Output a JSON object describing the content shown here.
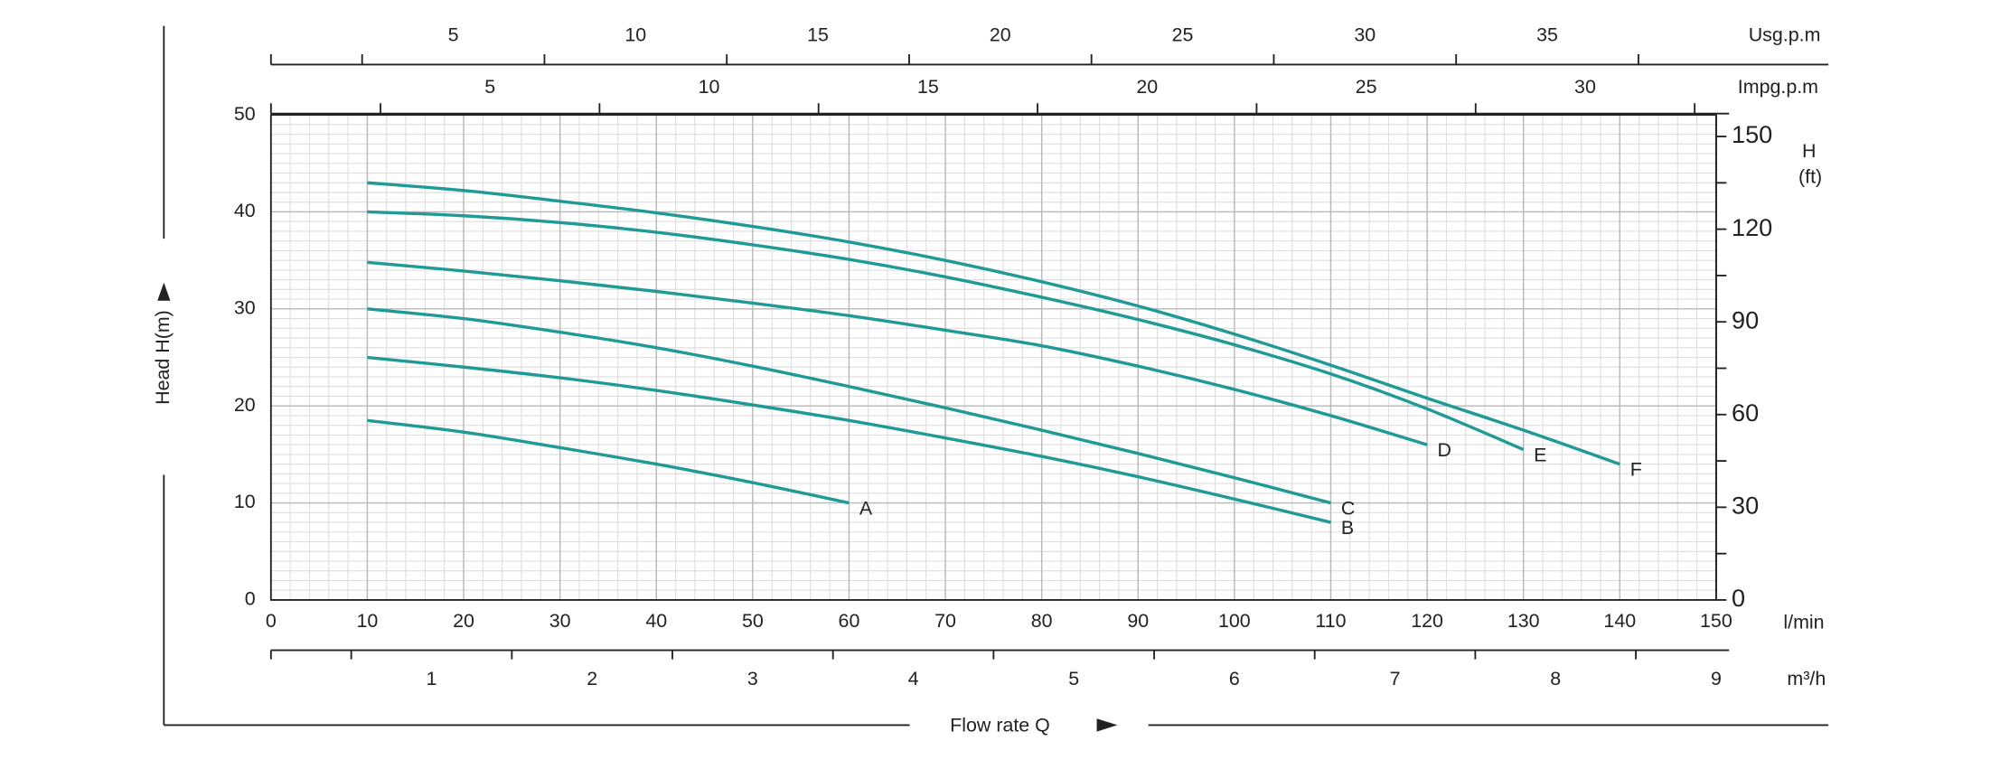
{
  "chart_data": {
    "type": "line",
    "xlabel": "Flow rate Q",
    "ylabel": "Head H(m)",
    "xunit": "l/min",
    "xlim": [
      0,
      150
    ],
    "xticks": [
      0,
      10,
      20,
      30,
      40,
      50,
      60,
      70,
      80,
      90,
      100,
      110,
      120,
      130,
      140,
      150
    ],
    "ylim": [
      0,
      50
    ],
    "yticks": [
      0,
      10,
      20,
      30,
      40,
      50
    ],
    "grid": true,
    "minor_grid_step": {
      "x": 2,
      "y": 1
    },
    "y2label": [
      "H",
      "(ft)"
    ],
    "y2lim": [
      0,
      157
    ],
    "y2ticks": [
      0,
      30,
      60,
      90,
      120,
      150
    ],
    "y2_minor_ticks": [
      15,
      45,
      75,
      105,
      135
    ],
    "top_axes": [
      {
        "label": "Usg.p.m",
        "lim": [
          0,
          39.63
        ],
        "ticks": [
          5,
          10,
          15,
          20,
          25,
          30,
          35
        ],
        "minor_ticks": [
          0,
          2.5,
          7.5,
          12.5,
          17.5,
          22.5,
          27.5,
          32.5,
          37.5
        ]
      },
      {
        "label": "Impg.p.m",
        "lim": [
          0,
          32.99
        ],
        "ticks": [
          5,
          10,
          15,
          20,
          25,
          30
        ],
        "minor_ticks": [
          0,
          2.5,
          7.5,
          12.5,
          17.5,
          22.5,
          27.5,
          32.5
        ]
      }
    ],
    "bottom_axis2": {
      "label": "m³/h",
      "lim": [
        0,
        9
      ],
      "ticks": [
        1,
        2,
        3,
        4,
        5,
        6,
        7,
        8,
        9
      ],
      "minor_ticks": [
        0,
        0.5,
        1.5,
        2.5,
        3.5,
        4.5,
        5.5,
        6.5,
        7.5,
        8.5
      ]
    },
    "color": "#1f9a96",
    "series": [
      {
        "name": "A",
        "x": [
          10,
          20,
          30,
          40,
          50,
          60
        ],
        "values": [
          18.5,
          17.3,
          15.7,
          14.0,
          12.1,
          10
        ]
      },
      {
        "name": "B",
        "x": [
          10,
          20,
          30,
          40,
          50,
          60,
          70,
          80,
          90,
          100,
          110
        ],
        "values": [
          25,
          24,
          22.9,
          21.6,
          20.1,
          18.5,
          16.7,
          14.8,
          12.7,
          10.4,
          8
        ]
      },
      {
        "name": "C",
        "x": [
          10,
          20,
          30,
          40,
          50,
          60,
          70,
          80,
          90,
          100,
          110
        ],
        "values": [
          30,
          29,
          27.6,
          26,
          24.1,
          22,
          19.8,
          17.5,
          15.1,
          12.6,
          10
        ]
      },
      {
        "name": "D",
        "x": [
          10,
          20,
          30,
          40,
          50,
          60,
          70,
          80,
          90,
          100,
          110,
          120
        ],
        "values": [
          34.8,
          33.9,
          32.9,
          31.8,
          30.6,
          29.3,
          27.8,
          26.2,
          24.1,
          21.7,
          19.0,
          16
        ]
      },
      {
        "name": "E",
        "x": [
          10,
          20,
          30,
          40,
          50,
          60,
          70,
          80,
          90,
          100,
          110,
          120,
          130
        ],
        "values": [
          40,
          39.6,
          38.9,
          37.9,
          36.6,
          35.1,
          33.3,
          31.2,
          28.9,
          26.3,
          23.3,
          19.7,
          15.5
        ]
      },
      {
        "name": "F",
        "x": [
          10,
          20,
          30,
          40,
          50,
          60,
          70,
          80,
          90,
          100,
          110,
          120,
          130,
          140
        ],
        "values": [
          43,
          42.2,
          41.1,
          39.9,
          38.5,
          36.9,
          35,
          32.8,
          30.3,
          27.4,
          24.2,
          20.8,
          17.5,
          14
        ]
      }
    ]
  }
}
